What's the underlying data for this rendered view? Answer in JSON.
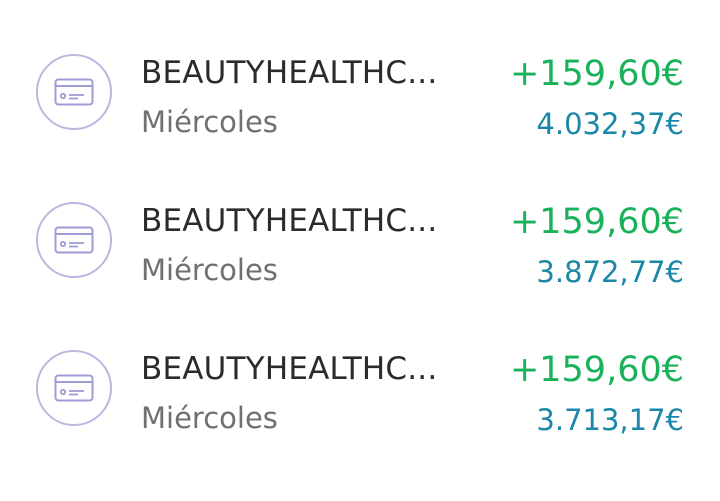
{
  "colors": {
    "icon_stroke": "#b9b8e0",
    "icon_fill": "#9f9dd6",
    "merchant_text": "#2b2b2b",
    "day_text": "#707070",
    "amount_positive": "#19b15a",
    "balance_text": "#1a86a8"
  },
  "transactions": [
    {
      "icon": "credit-card-icon",
      "merchant": "BEAUTYHEALTHC...",
      "day": "Miércoles",
      "amount": "+159,60€",
      "balance": "4.032,37€"
    },
    {
      "icon": "credit-card-icon",
      "merchant": "BEAUTYHEALTHC...",
      "day": "Miércoles",
      "amount": "+159,60€",
      "balance": "3.872,77€"
    },
    {
      "icon": "credit-card-icon",
      "merchant": "BEAUTYHEALTHC...",
      "day": "Miércoles",
      "amount": "+159,60€",
      "balance": "3.713,17€"
    }
  ]
}
